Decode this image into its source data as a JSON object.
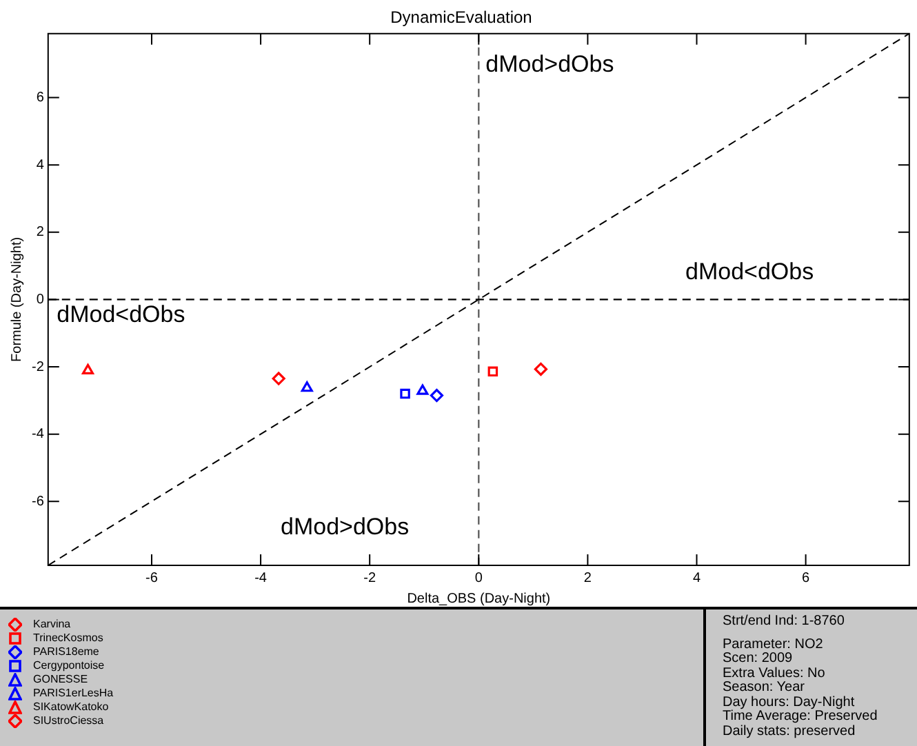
{
  "chart_data": {
    "type": "scatter",
    "title": "DynamicEvaluation",
    "xlabel": "Delta_OBS (Day-Night)",
    "ylabel": "Formule (Day-Night)",
    "xlim": [
      -7.9,
      7.9
    ],
    "ylim": [
      -7.9,
      7.9
    ],
    "xticks": [
      -6,
      -4,
      -2,
      0,
      2,
      4,
      6
    ],
    "yticks": [
      -6,
      -4,
      -2,
      0,
      2,
      4,
      6
    ],
    "grid": false,
    "legend": "bottom left",
    "ref_lines": [
      {
        "axis": "x",
        "value": 0,
        "color": "#606060",
        "line_style": "dashed"
      },
      {
        "axis": "y",
        "value": 0,
        "color": "#000000",
        "line_style": "dashed"
      }
    ],
    "annotations": [
      "dMod>dObs",
      "dMod<dObs",
      "dMod<dObs",
      "dMod>dObs",
      "Strt/end Ind: 1-8760",
      "Parameter: NO2",
      "Scen: 2009",
      "Extra Values: No",
      "Season: Year",
      "Day hours: Day-Night",
      "Time Average: Preserved",
      "Daily stats: preserved"
    ],
    "series": [
      {
        "name": "Karvina",
        "color": "#ff0000",
        "marker": "diamond",
        "x": [
          -3.67
        ],
        "values": [
          -2.35
        ]
      },
      {
        "name": "TrinecKosmos",
        "color": "#ff0000",
        "marker": "square",
        "x": [
          0.26
        ],
        "values": [
          -2.14
        ]
      },
      {
        "name": "PARIS18eme",
        "color": "#0000ff",
        "marker": "diamond",
        "x": [
          -0.77
        ],
        "values": [
          -2.85
        ]
      },
      {
        "name": "Cergypontoise",
        "color": "#0000ff",
        "marker": "square",
        "x": [
          -1.35
        ],
        "values": [
          -2.8
        ]
      },
      {
        "name": "GONESSE",
        "color": "#0000ff",
        "marker": "triangle",
        "x": [
          -3.15
        ],
        "values": [
          -2.63
        ]
      },
      {
        "name": "PARIS1erLesHa",
        "color": "#0000ff",
        "marker": "triangle",
        "x": [
          -1.03
        ],
        "values": [
          -2.72
        ]
      },
      {
        "name": "SIKatowKatoko",
        "color": "#ff0000",
        "marker": "triangle",
        "x": [
          -7.17
        ],
        "values": [
          -2.11
        ]
      },
      {
        "name": "SIUstroCiessa",
        "color": "#ff0000",
        "marker": "diamond",
        "x": [
          1.14
        ],
        "values": [
          -2.07
        ]
      },
      {
        "type": "line",
        "color": "#000000",
        "line_style": "dashed",
        "marker": "none",
        "x": [
          -7.9,
          7.9
        ],
        "values": [
          -7.9,
          7.9
        ]
      }
    ]
  }
}
